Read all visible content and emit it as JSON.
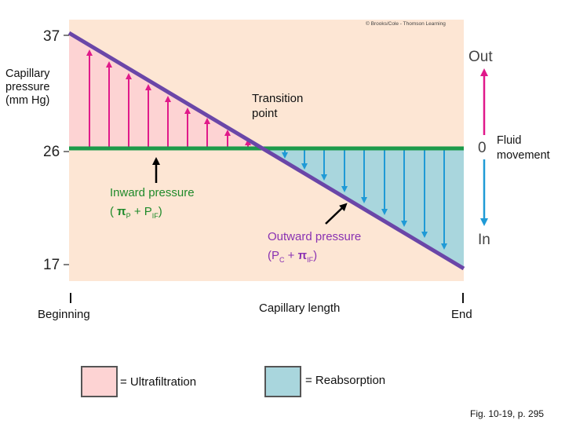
{
  "copyright": "© Brooks/Cole - Thomson Learning",
  "y_axis": {
    "title": "Capillary pressure (mm Hg)",
    "ticks": [
      "37",
      "26",
      "17"
    ]
  },
  "annotations": {
    "transition_point": "Transition point",
    "inward_pressure": "Inward pressure",
    "inward_formula": "( πP + PIF)",
    "outward_pressure": "Outward pressure",
    "outward_formula": "(PC + πIF)"
  },
  "fluid_axis": {
    "out": "Out",
    "zero": "0",
    "in": "In",
    "title": "Fluid movement"
  },
  "x_axis": {
    "beginning": "Beginning",
    "title": "Capillary length",
    "end": "End"
  },
  "legend": {
    "ultrafiltration": "= Ultrafiltration",
    "reabsorption": "= Reabsorption"
  },
  "figure_ref": "Fig. 10-19, p. 295",
  "colors": {
    "panel_bg": "#fde6d4",
    "ultrafiltration_fill": "#fdd3d3",
    "reabsorption_fill": "#a9d6dd",
    "capillary_pressure_line": "#6a46a8",
    "inward_pressure_line": "#1c9a4a",
    "outward_arrow": "#e0198a",
    "inward_arrow": "#1f9ad6"
  }
}
